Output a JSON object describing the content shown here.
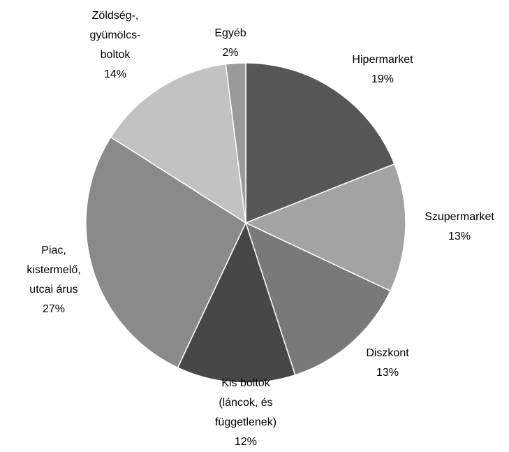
{
  "chart_data": {
    "type": "pie",
    "categories": [
      "Hipermarket",
      "Szupermarket",
      "Diszkont",
      "Kis boltok\n(láncok, és\nfüggetlenek)",
      "Piac,\nkistermelő,\nutcai árus",
      "Zöldség-,\ngyümölcs-\nboltok",
      "Egyéb"
    ],
    "values": [
      19,
      13,
      13,
      12,
      27,
      14,
      2
    ],
    "value_labels": [
      "19%",
      "13%",
      "13%",
      "12%",
      "27%",
      "14%",
      "2%"
    ],
    "colors": [
      "#565656",
      "#a3a3a3",
      "#797979",
      "#474747",
      "#8a8a8a",
      "#c2c2c2",
      "#9a9a9a"
    ]
  }
}
